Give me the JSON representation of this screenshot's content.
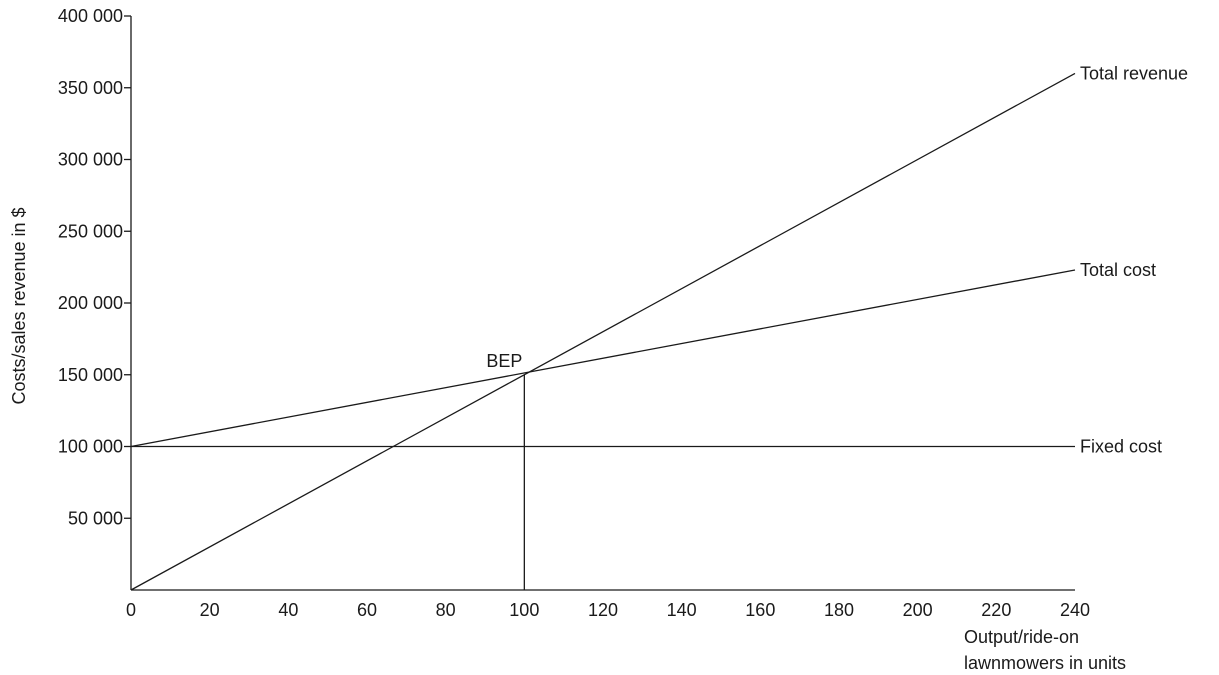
{
  "chart_data": {
    "type": "line",
    "title": "",
    "xlabel": [
      "Output/ride-on",
      "lawnmowers in units"
    ],
    "ylabel": "Costs/sales revenue in $",
    "xlim": [
      0,
      240
    ],
    "ylim": [
      0,
      400000
    ],
    "x_ticks": [
      0,
      20,
      40,
      60,
      80,
      100,
      120,
      140,
      160,
      180,
      200,
      220,
      240
    ],
    "x_tick_labels": [
      "0",
      "20",
      "40",
      "60",
      "80",
      "100",
      "120",
      "140",
      "160",
      "180",
      "200",
      "220",
      "240"
    ],
    "y_ticks": [
      50000,
      100000,
      150000,
      200000,
      250000,
      300000,
      350000,
      400000
    ],
    "y_tick_labels": [
      "50 000",
      "100 000",
      "150 000",
      "200 000",
      "250 000",
      "300 000",
      "350 000",
      "400 000"
    ],
    "grid": false,
    "legend": "none",
    "series": [
      {
        "name": "Total revenue",
        "x": [
          0,
          240
        ],
        "y": [
          0,
          360000
        ]
      },
      {
        "name": "Total cost",
        "x": [
          0,
          240
        ],
        "y": [
          100000,
          223000
        ]
      },
      {
        "name": "Fixed cost",
        "x": [
          0,
          240
        ],
        "y": [
          100000,
          100000
        ]
      }
    ],
    "annotations": [
      {
        "text": "BEP",
        "x": 100,
        "y": 150000,
        "dropline": true
      }
    ]
  }
}
